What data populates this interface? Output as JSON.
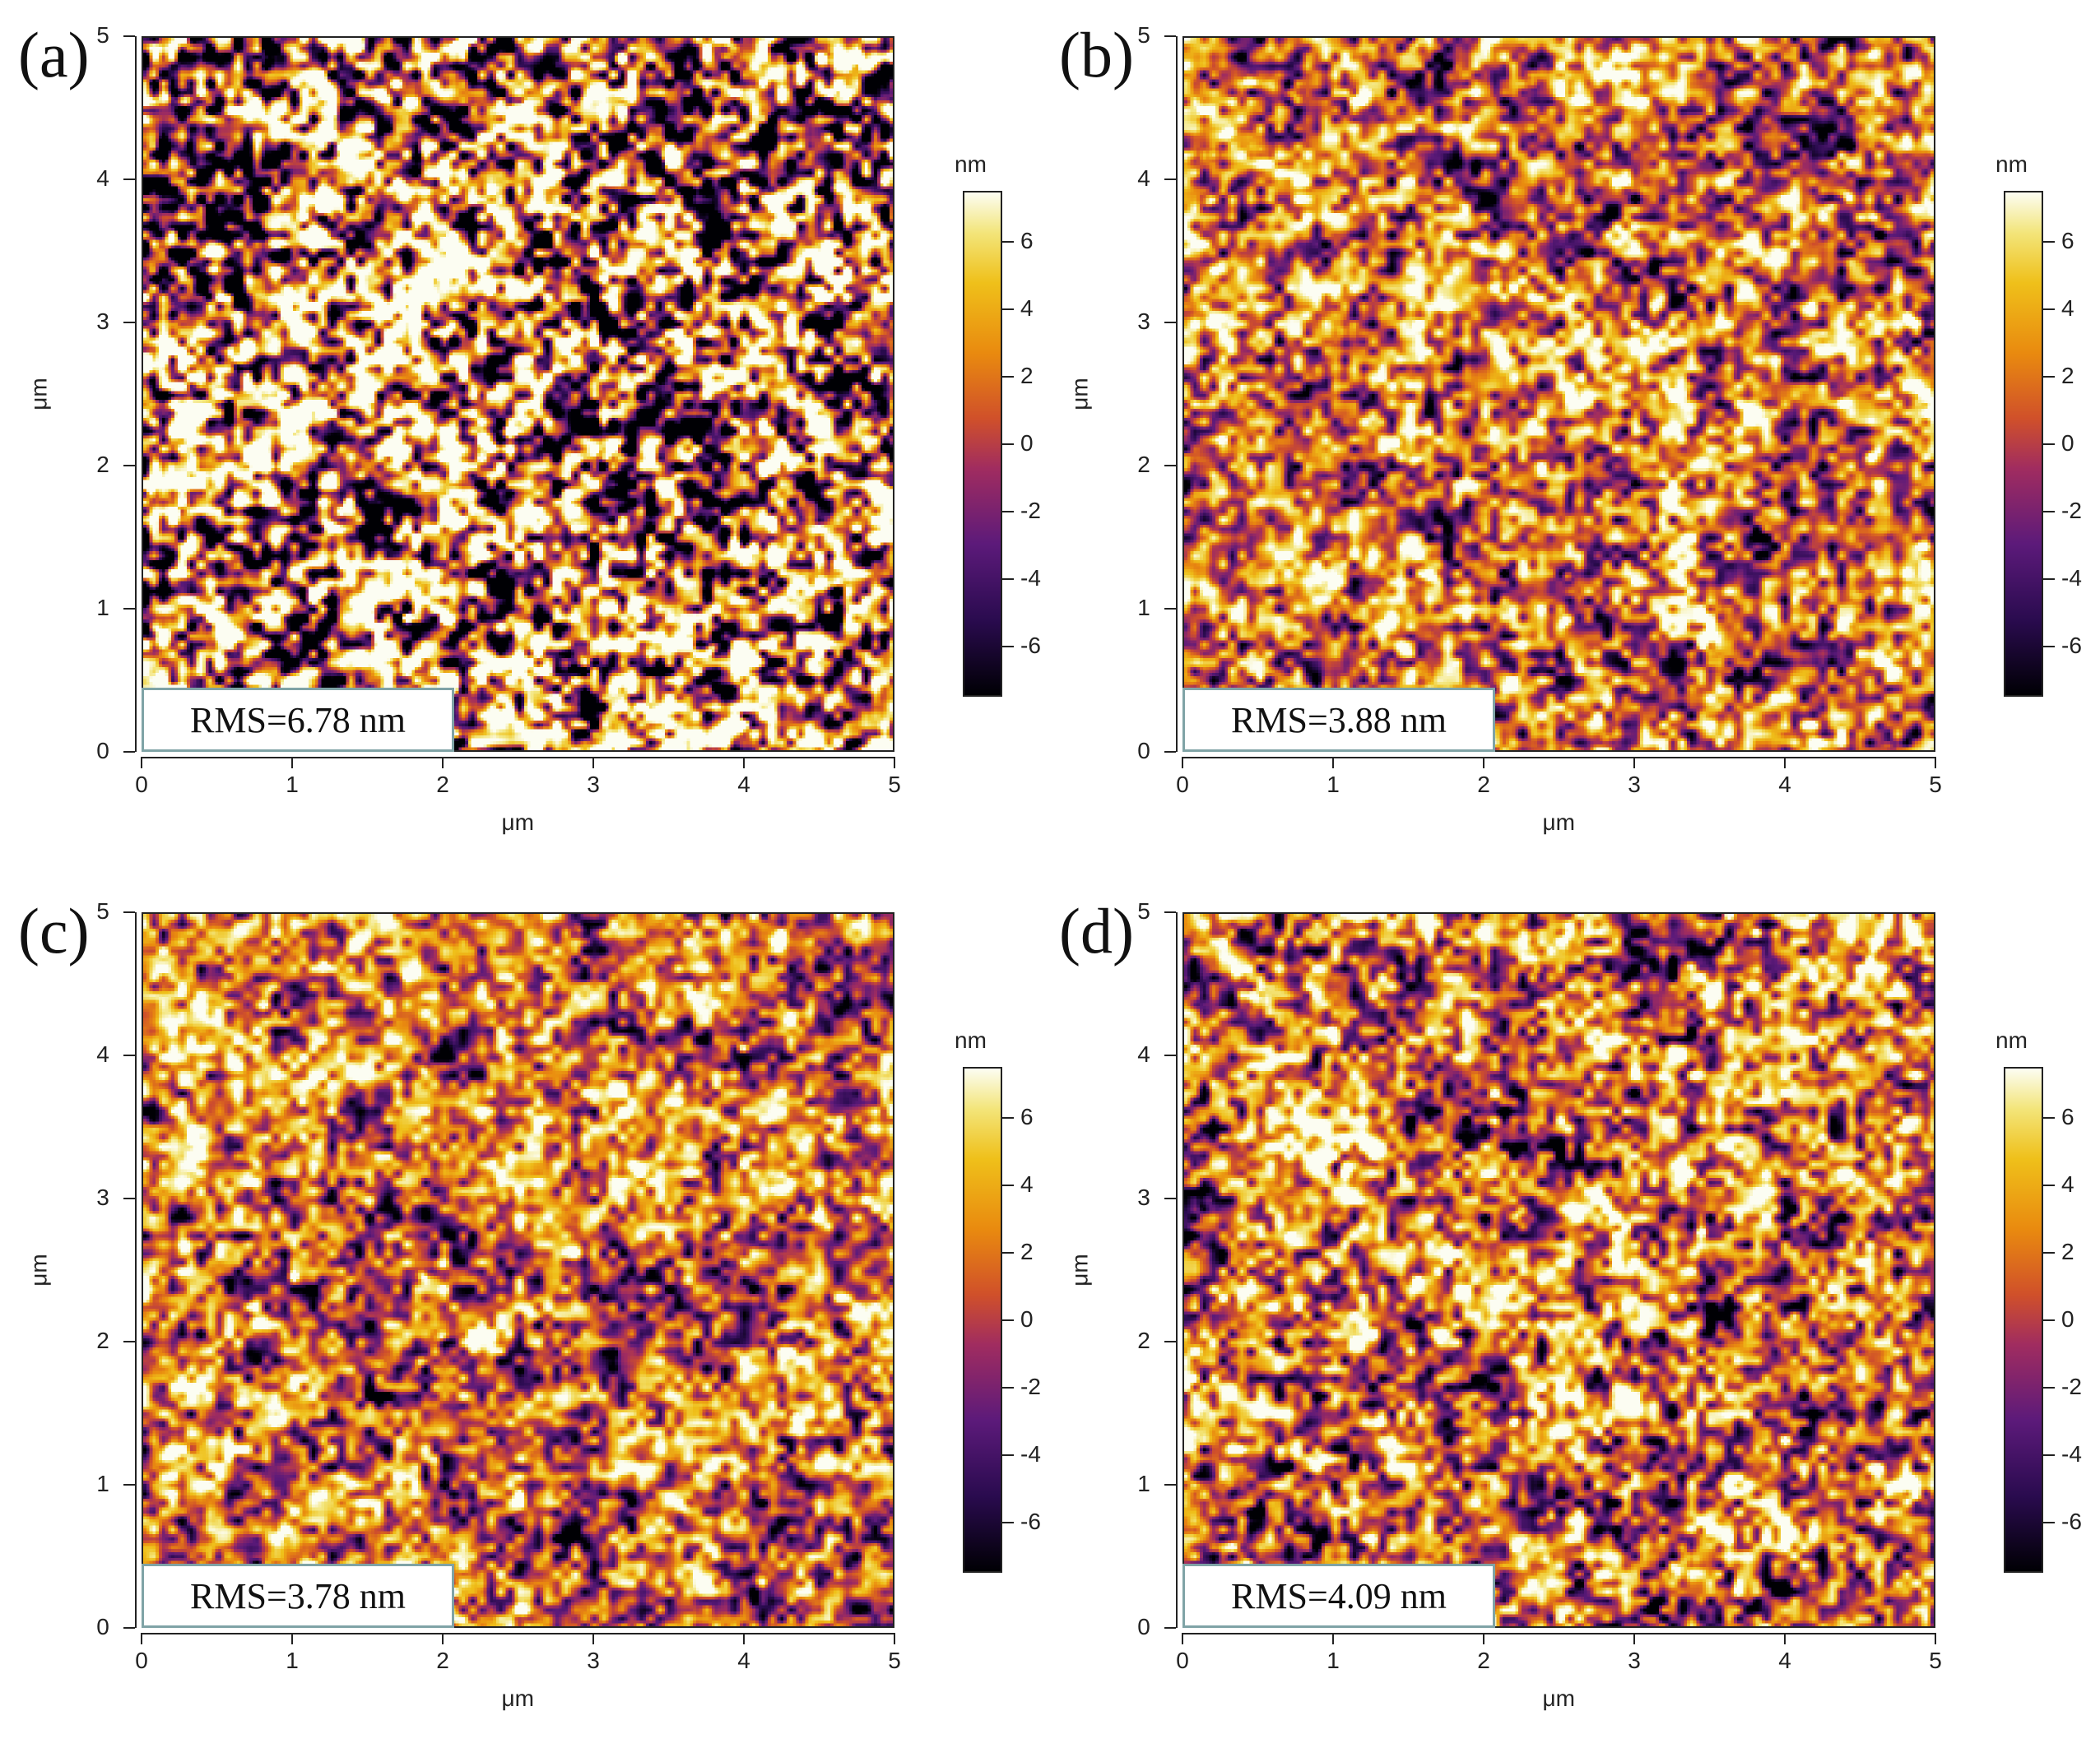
{
  "colors": {
    "colormap": [
      "#000004",
      "#2a0b4f",
      "#5c1a7a",
      "#a02c60",
      "#d0502a",
      "#e98a0f",
      "#efc01a",
      "#f3e57a",
      "#fcfdf2"
    ],
    "rms_box_border": "#7fa3a6"
  },
  "axis": {
    "x_title": "μm",
    "y_title": "μm",
    "ticks": [
      "0",
      "1",
      "2",
      "3",
      "4",
      "5"
    ],
    "range_um": [
      0,
      5
    ]
  },
  "colorbar": {
    "unit": "nm",
    "ticks": [
      "6",
      "4",
      "2",
      "0",
      "-2",
      "-4",
      "-6"
    ],
    "range_nm": [
      -7.5,
      7.5
    ]
  },
  "panels": [
    {
      "label": "(a)",
      "rms": "RMS=6.78 nm",
      "rms_value": 6.78
    },
    {
      "label": "(b)",
      "rms": "RMS=3.88 nm",
      "rms_value": 3.88
    },
    {
      "label": "(c)",
      "rms": "RMS=3.78 nm",
      "rms_value": 3.78
    },
    {
      "label": "(d)",
      "rms": "RMS=4.09 nm",
      "rms_value": 4.09
    }
  ]
}
